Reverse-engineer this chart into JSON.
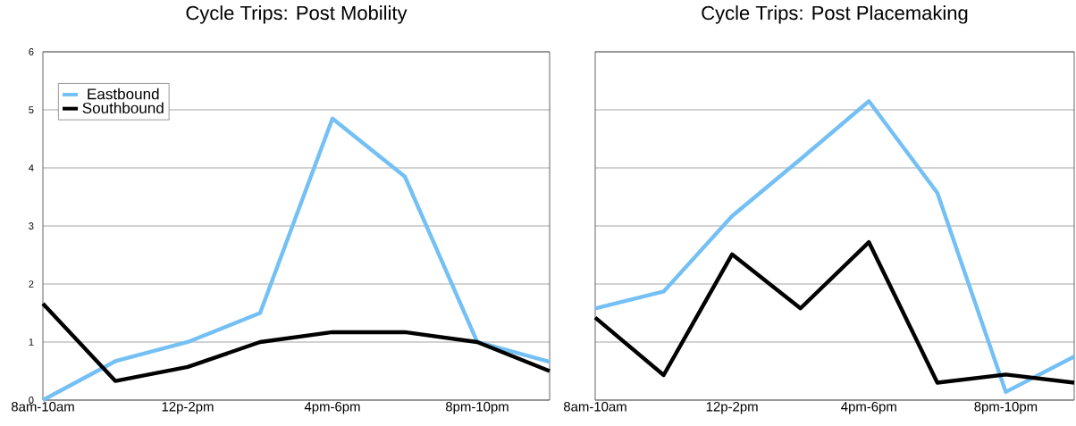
{
  "chart_data": [
    {
      "type": "line",
      "title": "Cycle Trips: Post Mobility",
      "categories": [
        "8am-10am",
        null,
        "12p-2pm",
        null,
        "4pm-6pm",
        null,
        "8pm-10pm",
        null
      ],
      "ylim": [
        0,
        6
      ],
      "yticks": [
        0,
        1,
        2,
        3,
        4,
        5,
        6
      ],
      "grid": "y",
      "legend": "top left",
      "series": [
        {
          "name": "Eastbound",
          "color": "#74c0f5",
          "values": [
            0,
            0.67,
            1.0,
            1.5,
            4.85,
            3.85,
            1.0,
            0.66
          ]
        },
        {
          "name": "Southbound",
          "color": "#000000",
          "values": [
            1.66,
            0.33,
            0.57,
            1.0,
            1.17,
            1.17,
            1.0,
            0.5
          ]
        }
      ]
    },
    {
      "type": "line",
      "title": "Cycle Trips: Post Placemaking",
      "categories": [
        "8am-10am",
        null,
        "12p-2pm",
        null,
        "4pm-6pm",
        null,
        "8pm-10pm",
        null
      ],
      "ylim": [
        0,
        6
      ],
      "yticks": [
        0,
        1,
        2,
        3,
        4,
        5,
        6
      ],
      "grid": "y",
      "tick_labels": "x",
      "series": [
        {
          "color": "#74c0f5",
          "values": [
            1.58,
            1.87,
            3.17,
            4.15,
            5.15,
            3.57,
            0.14,
            0.75
          ]
        },
        {
          "color": "#000000",
          "values": [
            1.42,
            0.43,
            2.51,
            1.58,
            2.72,
            0.3,
            0.44,
            0.3
          ]
        }
      ]
    }
  ]
}
